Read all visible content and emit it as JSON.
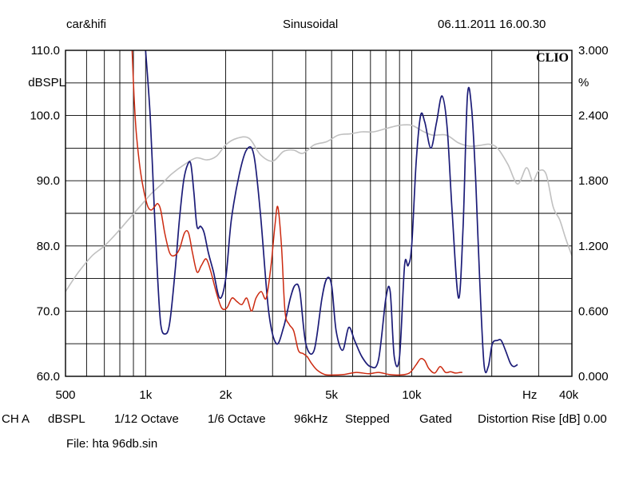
{
  "header": {
    "app": "car&hifi",
    "mode": "Sinusoidal",
    "timestamp": "06.11.2011 16.00.30"
  },
  "footer": {
    "items": [
      "CH A",
      "dBSPL",
      "1/12 Octave",
      "1/6 Octave",
      "96kHz",
      "Stepped",
      "Gated",
      "Distortion Rise [dB] 0.00"
    ],
    "file_label": "File: hta 96db.sin"
  },
  "colors": {
    "frame": "#000000",
    "grid": "#000000",
    "gray_series": "#c0c0c0",
    "blue_series": "#1c1c78",
    "red_series": "#cc2a10"
  },
  "chart_data": {
    "type": "line",
    "brand": "CLIO",
    "x_scale": "log",
    "xlim": [
      500,
      40000
    ],
    "ylim_left": [
      60,
      110
    ],
    "ylim_right": [
      0,
      3
    ],
    "ylabel_left": "dBSPL",
    "ylabel_right": "%",
    "xlabel": "Hz",
    "x_ticks": [
      {
        "value": 500,
        "label": "500"
      },
      {
        "value": 1000,
        "label": "1k"
      },
      {
        "value": 2000,
        "label": "2k"
      },
      {
        "value": 5000,
        "label": "5k"
      },
      {
        "value": 10000,
        "label": "10k"
      },
      {
        "value": 40000,
        "label": "40k"
      }
    ],
    "x_grid": [
      600,
      700,
      800,
      900,
      1000,
      2000,
      3000,
      4000,
      5000,
      6000,
      7000,
      8000,
      9000,
      10000,
      20000,
      30000,
      40000
    ],
    "y_ticks_left": [
      {
        "value": 60,
        "label": "60.0"
      },
      {
        "value": 70,
        "label": "70.0"
      },
      {
        "value": 80,
        "label": "80.0"
      },
      {
        "value": 90,
        "label": "90.0"
      },
      {
        "value": 100,
        "label": "100.0"
      },
      {
        "value": 110,
        "label": "110.0"
      }
    ],
    "y_ticks_right": [
      {
        "value": 0,
        "label": "0.000"
      },
      {
        "value": 0.6,
        "label": "0.600"
      },
      {
        "value": 1.2,
        "label": "1.200"
      },
      {
        "value": 1.8,
        "label": "1.800"
      },
      {
        "value": 2.4,
        "label": "2.400"
      },
      {
        "value": 3.0,
        "label": "3.000"
      }
    ],
    "y_grid": [
      65,
      70,
      75,
      80,
      85,
      90,
      95,
      100,
      105
    ],
    "series": [
      {
        "color": "gray",
        "axis": "left",
        "x": [
          500,
          560,
          630,
          700,
          780,
          860,
          950,
          1050,
          1150,
          1250,
          1400,
          1550,
          1700,
          1850,
          2000,
          2200,
          2450,
          2700,
          3000,
          3300,
          3600,
          3900,
          4300,
          4800,
          5300,
          5900,
          6500,
          7200,
          8000,
          9000,
          10000,
          11000,
          12000,
          13500,
          15000,
          16500,
          18000,
          19500,
          21000,
          23000,
          25000,
          27000,
          28500,
          30000,
          32000,
          34000,
          36000,
          38000,
          40000
        ],
        "y": [
          73,
          76,
          78.5,
          80,
          82,
          84,
          86,
          88,
          89.5,
          91,
          92.5,
          93.5,
          93.2,
          93.8,
          95.5,
          96.5,
          96.5,
          94,
          93,
          94.5,
          94.7,
          94.2,
          95.5,
          96,
          97,
          97.2,
          97.5,
          97.5,
          98,
          98.5,
          98.5,
          97.6,
          97,
          97,
          95.8,
          95.3,
          95.4,
          95.6,
          95,
          92.5,
          89.5,
          92,
          90,
          91.5,
          91,
          86,
          84,
          81,
          78.5
        ]
      },
      {
        "color": "blue",
        "axis": "left",
        "x": [
          1000,
          1040,
          1080,
          1110,
          1140,
          1180,
          1230,
          1290,
          1340,
          1390,
          1440,
          1480,
          1520,
          1560,
          1610,
          1660,
          1720,
          1800,
          1900,
          2000,
          2100,
          2250,
          2400,
          2550,
          2700,
          2900,
          3100,
          3300,
          3500,
          3650,
          3800,
          4000,
          4300,
          4600,
          4800,
          5000,
          5200,
          5500,
          5800,
          6100,
          6500,
          7000,
          7500,
          8000,
          8300,
          8600,
          9000,
          9400,
          9700,
          10000,
          10400,
          10800,
          11200,
          11800,
          12400,
          13000,
          13600,
          14200,
          15000,
          15600,
          16200,
          16800,
          17400,
          18000,
          18700,
          19400,
          20100,
          21000,
          21700,
          22500,
          23500,
          24200,
          25000
        ],
        "y": [
          110,
          100,
          85,
          75,
          68,
          66.5,
          68,
          76,
          84,
          90,
          92.5,
          92.5,
          88,
          83,
          83,
          82,
          79,
          76,
          72,
          75,
          84,
          91,
          94.8,
          94,
          85,
          70,
          65,
          67.5,
          72,
          74,
          73,
          65,
          64,
          72,
          75,
          74,
          67,
          64,
          67.5,
          65.5,
          63,
          61.5,
          62.5,
          72,
          73,
          63,
          63,
          77,
          77,
          80,
          93,
          100,
          99,
          95,
          99,
          103,
          98,
          85,
          72,
          83,
          103,
          101,
          90,
          75,
          61.8,
          61.5,
          65,
          65.5,
          65.5,
          64,
          62,
          61.5,
          61.8
        ]
      },
      {
        "color": "red",
        "axis": "left",
        "x": [
          890,
          905,
          920,
          940,
          960,
          990,
          1020,
          1050,
          1080,
          1110,
          1140,
          1180,
          1230,
          1280,
          1340,
          1400,
          1450,
          1500,
          1560,
          1620,
          1690,
          1760,
          1840,
          1930,
          2020,
          2110,
          2200,
          2300,
          2400,
          2500,
          2600,
          2720,
          2840,
          2960,
          3060,
          3140,
          3240,
          3340,
          3460,
          3600,
          3750,
          3900,
          4050,
          4200,
          4400,
          4700,
          5000,
          5600,
          6200,
          6900,
          7500,
          8200,
          9000,
          9800,
          10400,
          10800,
          11200,
          11600,
          12200,
          12800,
          13400,
          14000,
          14600,
          15200,
          15500
        ],
        "y": [
          110,
          103,
          98,
          94,
          91,
          88,
          86,
          85.5,
          86,
          86.5,
          85.5,
          82,
          79,
          78.5,
          79.5,
          82,
          82,
          79,
          76,
          77,
          78,
          76,
          73,
          70.5,
          70.5,
          72,
          71.5,
          71,
          72,
          70,
          72,
          73,
          72,
          77,
          83,
          86,
          80,
          70,
          68,
          67,
          64,
          63.5,
          63,
          62,
          61,
          60.3,
          60.2,
          60.3,
          60.6,
          60.4,
          60.6,
          60.3,
          60.2,
          60.5,
          61.8,
          62.7,
          62.4,
          61.2,
          60.5,
          61.5,
          60.6,
          60.7,
          60.5,
          60.6,
          60.6
        ]
      }
    ]
  }
}
